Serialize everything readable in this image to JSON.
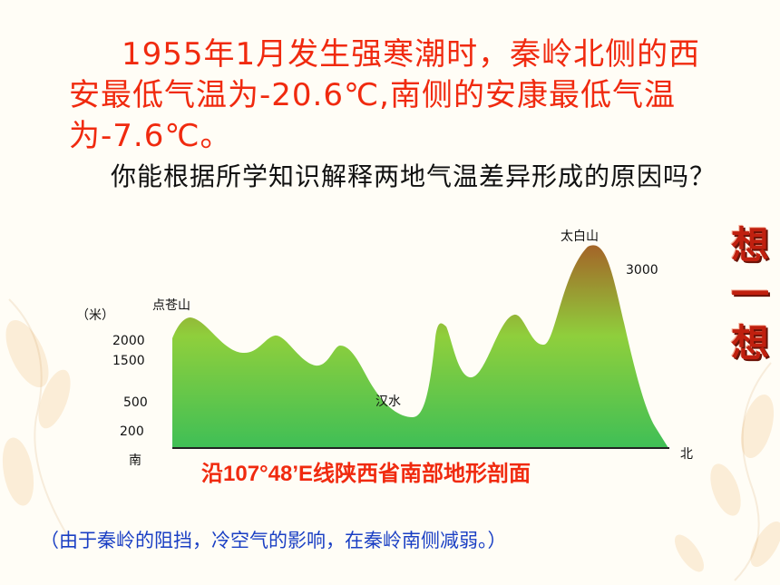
{
  "paragraph1": "1955年1月发生强寒潮时，秦岭北侧的西安最低气温为-20.6℃,南侧的安康最低气温为-7.6℃。",
  "paragraph2": "你能根据所学知识解释两地气温差异形成的原因吗？",
  "side_title": [
    "想",
    "一",
    "想"
  ],
  "profile": {
    "unit_label": "（米）",
    "y_ticks": [
      "2000",
      "1500",
      "500",
      "200"
    ],
    "peak_labels": {
      "dian": "点苍山",
      "hanshui": "汉水",
      "taibai": "太白山",
      "elev": "3000"
    },
    "dir_south": "南",
    "dir_north": "北",
    "caption": "沿107°48’E线陕西省南部地形剖面",
    "colors": {
      "top": "#a46428",
      "mid": "#8fcf3c",
      "bottom": "#3fbf56"
    }
  },
  "note": "（由于秦岭的阻挡，冷空气的影响，在秦岭南侧减弱。）"
}
